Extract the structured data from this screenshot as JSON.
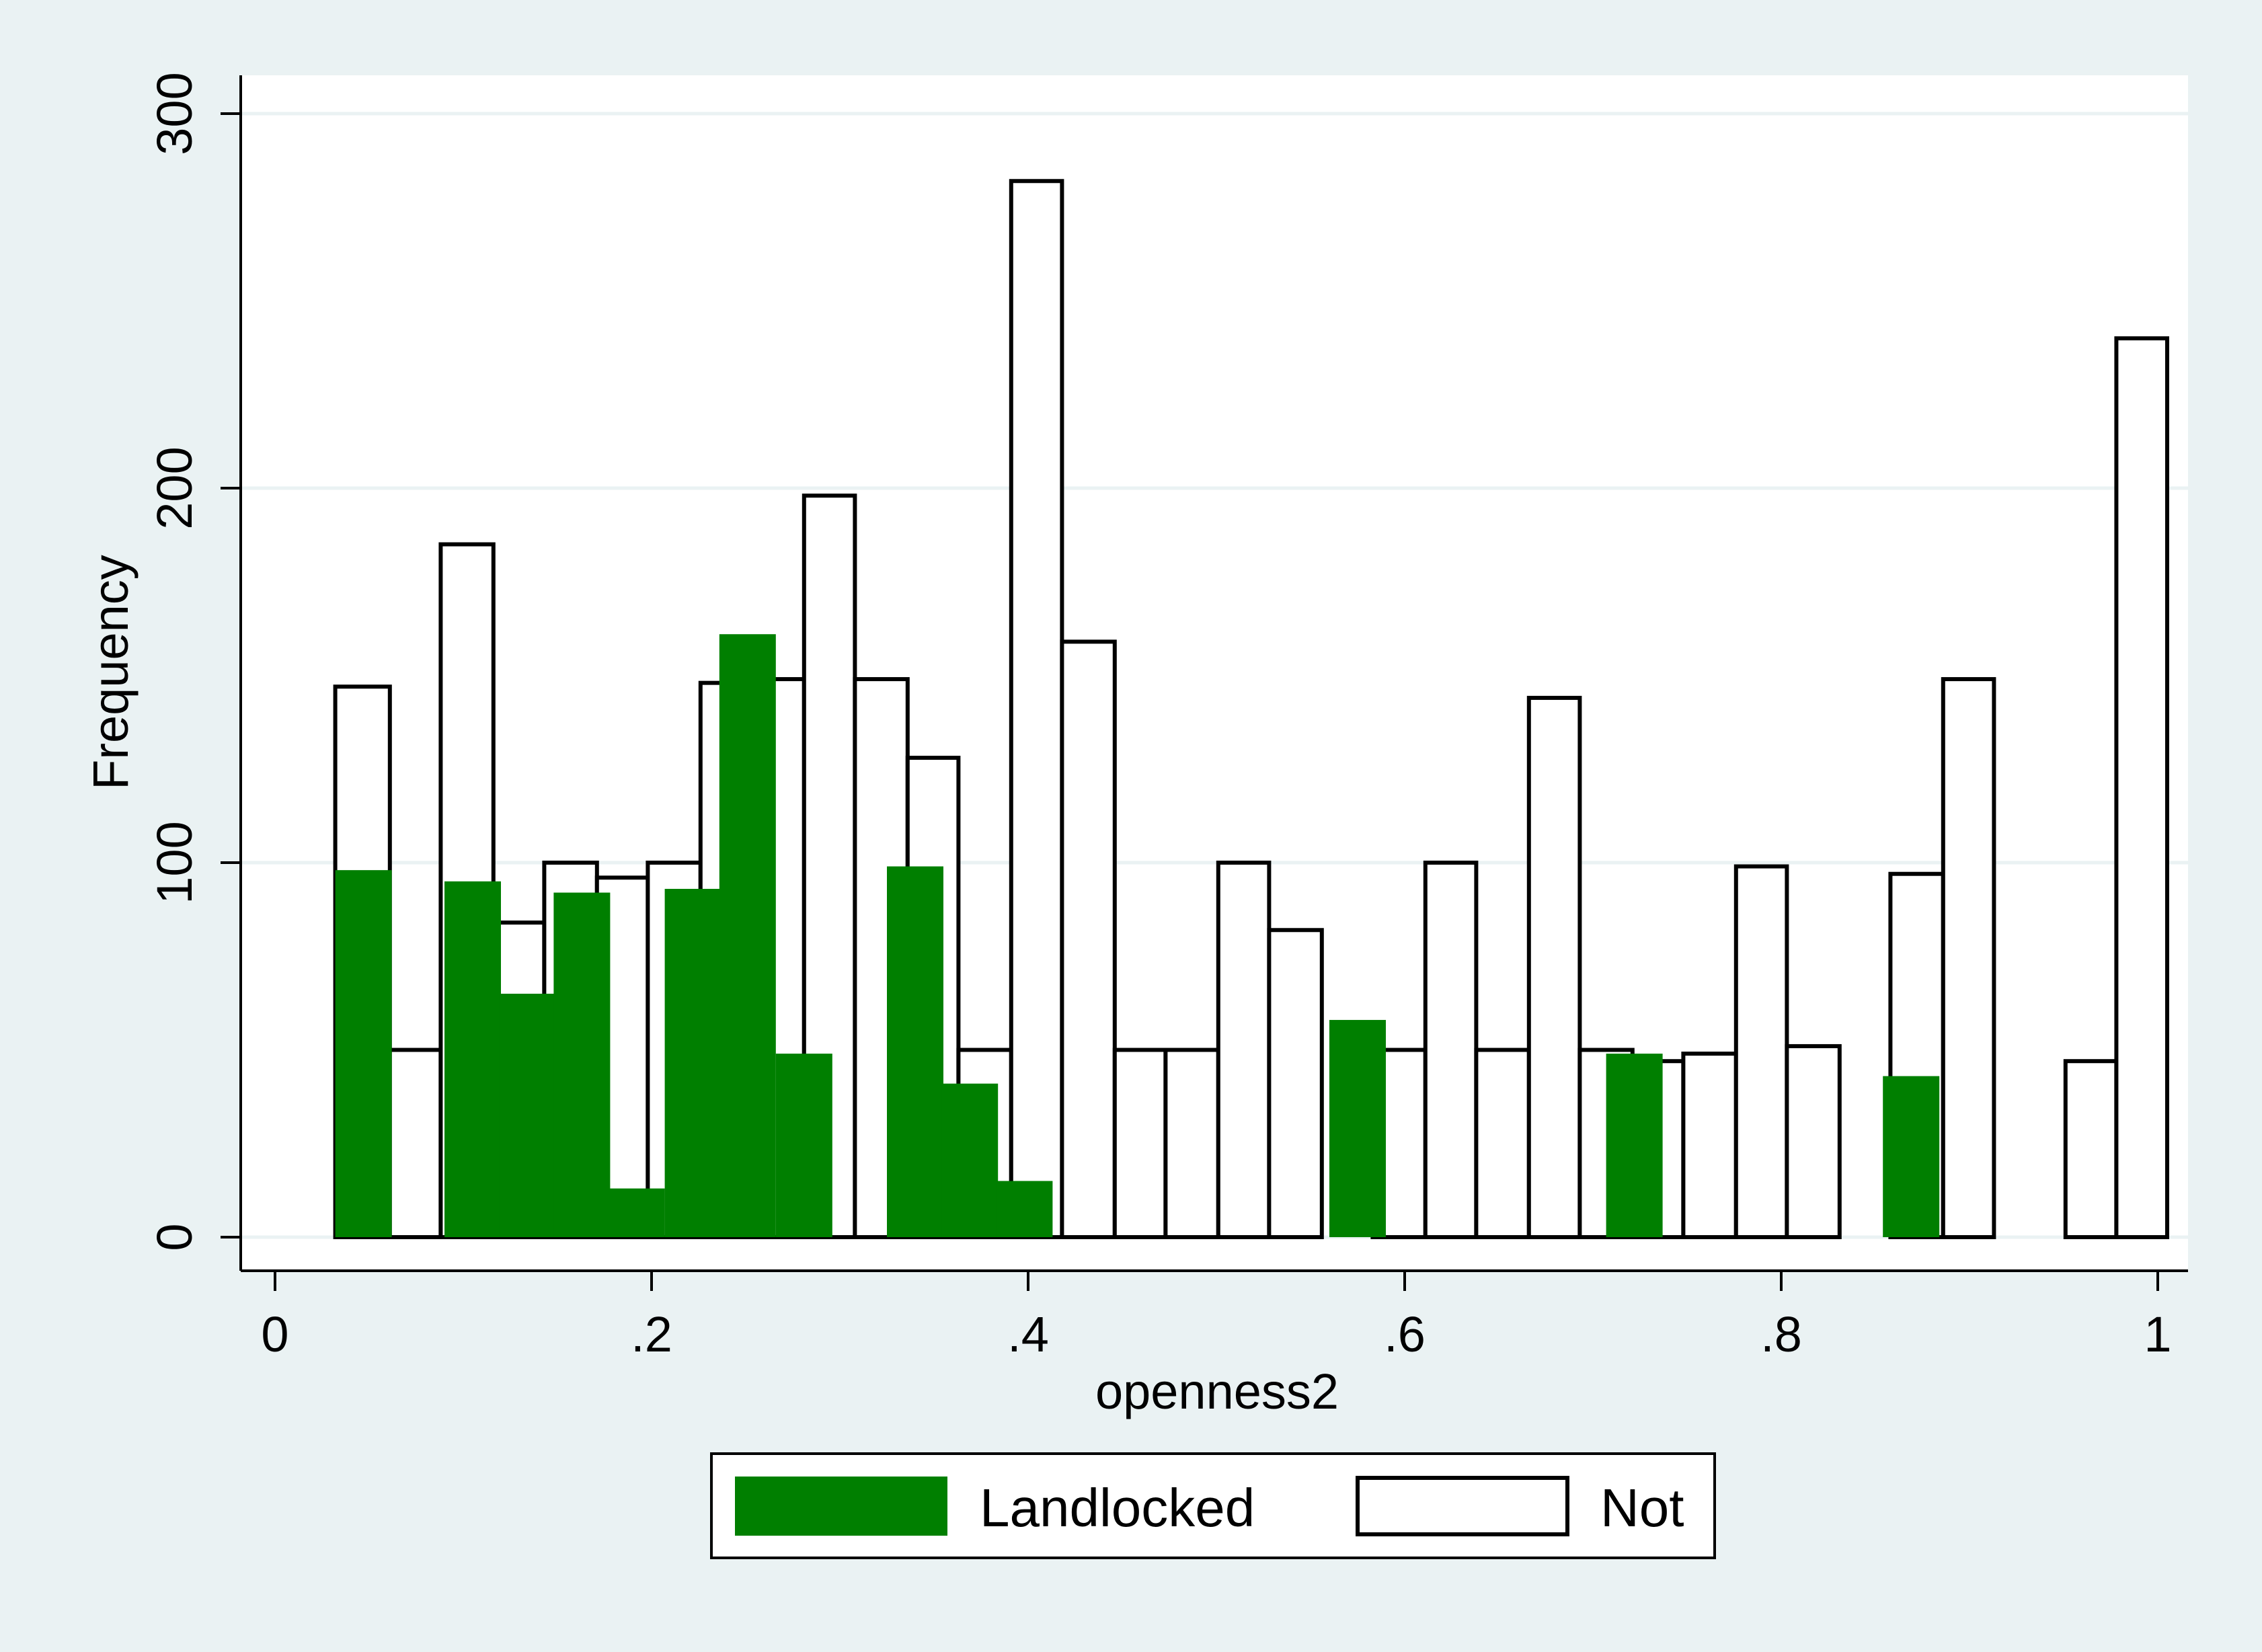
{
  "chart_data": {
    "type": "bar",
    "xlabel": "openness2",
    "ylabel": "Frequency",
    "xlim": [
      0,
      1
    ],
    "ylim": [
      0,
      300
    ],
    "x_ticks": [
      0,
      0.2,
      0.4,
      0.6,
      0.8,
      1
    ],
    "x_tick_labels": [
      "0",
      ".2",
      ".4",
      ".6",
      ".8",
      "1"
    ],
    "y_ticks": [
      0,
      100,
      200,
      300
    ],
    "y_tick_labels": [
      "0",
      "100",
      "200",
      "300"
    ],
    "grid": true,
    "legend_position": "bottom",
    "colors": {
      "background": "#eaf2f3",
      "plot": "#ffffff",
      "grid": "#eaf2f3",
      "landlocked": "#007f00",
      "not": "#ffffff",
      "outline": "#000000"
    },
    "series": [
      {
        "name": "Landlocked",
        "bars": [
          {
            "x0": 0.032,
            "x1": 0.062,
            "value": 98
          },
          {
            "x0": 0.09,
            "x1": 0.12,
            "value": 95
          },
          {
            "x0": 0.119,
            "x1": 0.149,
            "value": 65
          },
          {
            "x0": 0.148,
            "x1": 0.178,
            "value": 92
          },
          {
            "x0": 0.177,
            "x1": 0.207,
            "value": 13
          },
          {
            "x0": 0.207,
            "x1": 0.237,
            "value": 93
          },
          {
            "x0": 0.236,
            "x1": 0.266,
            "value": 161
          },
          {
            "x0": 0.266,
            "x1": 0.296,
            "value": 49
          },
          {
            "x0": 0.325,
            "x1": 0.355,
            "value": 99
          },
          {
            "x0": 0.354,
            "x1": 0.384,
            "value": 41
          },
          {
            "x0": 0.383,
            "x1": 0.413,
            "value": 15
          },
          {
            "x0": 0.56,
            "x1": 0.59,
            "value": 58
          },
          {
            "x0": 0.707,
            "x1": 0.737,
            "value": 49
          },
          {
            "x0": 0.854,
            "x1": 0.884,
            "value": 43
          }
        ]
      },
      {
        "name": "Not",
        "bars": [
          {
            "x0": 0.032,
            "x1": 0.061,
            "value": 147
          },
          {
            "x0": 0.061,
            "x1": 0.088,
            "value": 50
          },
          {
            "x0": 0.088,
            "x1": 0.116,
            "value": 185
          },
          {
            "x0": 0.116,
            "x1": 0.143,
            "value": 84
          },
          {
            "x0": 0.143,
            "x1": 0.171,
            "value": 100
          },
          {
            "x0": 0.171,
            "x1": 0.198,
            "value": 96
          },
          {
            "x0": 0.198,
            "x1": 0.226,
            "value": 100
          },
          {
            "x0": 0.226,
            "x1": 0.253,
            "value": 148
          },
          {
            "x0": 0.253,
            "x1": 0.281,
            "value": 149
          },
          {
            "x0": 0.281,
            "x1": 0.308,
            "value": 198
          },
          {
            "x0": 0.308,
            "x1": 0.336,
            "value": 149
          },
          {
            "x0": 0.336,
            "x1": 0.363,
            "value": 128
          },
          {
            "x0": 0.363,
            "x1": 0.391,
            "value": 50
          },
          {
            "x0": 0.391,
            "x1": 0.418,
            "value": 282
          },
          {
            "x0": 0.418,
            "x1": 0.446,
            "value": 159
          },
          {
            "x0": 0.446,
            "x1": 0.473,
            "value": 50
          },
          {
            "x0": 0.473,
            "x1": 0.501,
            "value": 50
          },
          {
            "x0": 0.501,
            "x1": 0.528,
            "value": 100
          },
          {
            "x0": 0.528,
            "x1": 0.556,
            "value": 82
          },
          {
            "x0": 0.583,
            "x1": 0.611,
            "value": 50
          },
          {
            "x0": 0.611,
            "x1": 0.638,
            "value": 100
          },
          {
            "x0": 0.638,
            "x1": 0.666,
            "value": 50
          },
          {
            "x0": 0.666,
            "x1": 0.693,
            "value": 144
          },
          {
            "x0": 0.693,
            "x1": 0.721,
            "value": 50
          },
          {
            "x0": 0.721,
            "x1": 0.748,
            "value": 47
          },
          {
            "x0": 0.748,
            "x1": 0.776,
            "value": 49
          },
          {
            "x0": 0.776,
            "x1": 0.803,
            "value": 99
          },
          {
            "x0": 0.803,
            "x1": 0.831,
            "value": 51
          },
          {
            "x0": 0.858,
            "x1": 0.886,
            "value": 97
          },
          {
            "x0": 0.886,
            "x1": 0.913,
            "value": 149
          },
          {
            "x0": 0.951,
            "x1": 0.978,
            "value": 47
          },
          {
            "x0": 0.978,
            "x1": 1.005,
            "value": 240
          }
        ]
      }
    ]
  }
}
